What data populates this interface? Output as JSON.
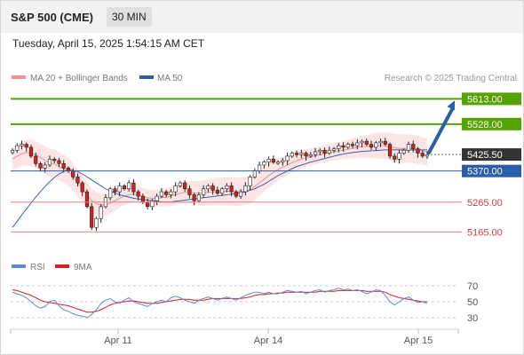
{
  "header": {
    "title": "S&P 500 (CME)",
    "timeframe": "30 MIN"
  },
  "timestamp": "Tuesday, April 15, 2025 1:54:15 AM CET",
  "legend": {
    "bb_label": "MA 20 + Bollinger Bands",
    "ma50_label": "MA 50",
    "credit": "Research © 2025 Trading Central",
    "rsi_label": "RSI",
    "rsi_ma_label": "9MA"
  },
  "colors": {
    "resistance": "#55a300",
    "support_major": "#2c5ea8",
    "support_minor": "#e88080",
    "current": "#333333",
    "bollinger_fill": "#fde0e0",
    "ma20": "#f09090",
    "ma50": "#3a62a8",
    "candle_up": "#ffffff",
    "candle_down": "#d42020",
    "rsi": "#5b8bd8",
    "rsi_ma": "#d42020",
    "arrow": "#2a5ea6"
  },
  "chart_data": {
    "type": "candlestick",
    "price_scale": [
      5100,
      5650
    ],
    "x_ticks": [
      "Apr 11",
      "Apr 14",
      "Apr 15"
    ],
    "levels": [
      {
        "value": 5613.0,
        "label": "5613.00",
        "kind": "resistance"
      },
      {
        "value": 5528.0,
        "label": "5528.00",
        "kind": "resistance"
      },
      {
        "value": 5425.5,
        "label": "5425.50",
        "kind": "current"
      },
      {
        "value": 5370.0,
        "label": "5370.00",
        "kind": "support_major"
      },
      {
        "value": 5265.0,
        "label": "5265.00",
        "kind": "support_minor"
      },
      {
        "value": 5165.0,
        "label": "5165.00",
        "kind": "support_minor"
      }
    ],
    "arrow": {
      "from": 5425.5,
      "to": 5613.0
    },
    "close": [
      5440,
      5455,
      5460,
      5450,
      5420,
      5395,
      5380,
      5390,
      5410,
      5405,
      5395,
      5380,
      5370,
      5350,
      5330,
      5300,
      5250,
      5180,
      5210,
      5250,
      5280,
      5310,
      5300,
      5320,
      5310,
      5330,
      5300,
      5285,
      5265,
      5250,
      5270,
      5285,
      5300,
      5290,
      5300,
      5320,
      5330,
      5310,
      5290,
      5270,
      5290,
      5310,
      5320,
      5305,
      5295,
      5310,
      5320,
      5300,
      5285,
      5300,
      5320,
      5350,
      5370,
      5390,
      5400,
      5410,
      5400,
      5400,
      5405,
      5420,
      5430,
      5425,
      5430,
      5420,
      5425,
      5435,
      5440,
      5430,
      5440,
      5445,
      5455,
      5450,
      5460,
      5455,
      5465,
      5470,
      5460,
      5450,
      5465,
      5470,
      5460,
      5420,
      5410,
      5430,
      5440,
      5460,
      5445,
      5430,
      5420,
      5425
    ],
    "ma20": [
      5410,
      5420,
      5428,
      5432,
      5430,
      5425,
      5415,
      5405,
      5398,
      5393,
      5385,
      5378,
      5368,
      5350,
      5330,
      5310,
      5290,
      5270,
      5260,
      5255,
      5255,
      5262,
      5270,
      5278,
      5285,
      5290,
      5292,
      5290,
      5285,
      5280,
      5278,
      5278,
      5280,
      5282,
      5285,
      5290,
      5295,
      5298,
      5298,
      5296,
      5295,
      5296,
      5298,
      5300,
      5300,
      5301,
      5302,
      5301,
      5300,
      5300,
      5303,
      5308,
      5318,
      5330,
      5342,
      5355,
      5365,
      5375,
      5383,
      5390,
      5398,
      5405,
      5410,
      5415,
      5418,
      5421,
      5425,
      5428,
      5432,
      5435,
      5438,
      5440,
      5443,
      5446,
      5449,
      5452,
      5453,
      5454,
      5455,
      5456,
      5455,
      5452,
      5448,
      5446,
      5446,
      5446,
      5444,
      5441,
      5438,
      5434
    ],
    "ma50": [
      5180,
      5200,
      5222,
      5242,
      5262,
      5282,
      5300,
      5318,
      5334,
      5348,
      5360,
      5368,
      5374,
      5372,
      5368,
      5360,
      5350,
      5340,
      5330,
      5320,
      5310,
      5302,
      5296,
      5290,
      5286,
      5282,
      5278,
      5276,
      5274,
      5272,
      5270,
      5268,
      5266,
      5266,
      5266,
      5268,
      5270,
      5272,
      5274,
      5276,
      5278,
      5280,
      5282,
      5284,
      5286,
      5288,
      5290,
      5292,
      5294,
      5296,
      5300,
      5305,
      5310,
      5318,
      5325,
      5335,
      5345,
      5355,
      5362,
      5370,
      5378,
      5385,
      5390,
      5395,
      5400,
      5404,
      5408,
      5412,
      5416,
      5420,
      5424,
      5427,
      5430,
      5432,
      5434,
      5436,
      5437,
      5438,
      5439,
      5440,
      5441,
      5441,
      5441,
      5441,
      5441,
      5441,
      5441,
      5441,
      5441,
      5441
    ],
    "rsi": [
      62,
      60,
      58,
      55,
      50,
      45,
      42,
      44,
      50,
      52,
      45,
      40,
      38,
      35,
      33,
      32,
      30,
      34,
      40,
      48,
      52,
      54,
      50,
      48,
      52,
      55,
      50,
      48,
      46,
      44,
      48,
      50,
      52,
      50,
      55,
      57,
      55,
      52,
      50,
      48,
      52,
      54,
      56,
      54,
      52,
      54,
      56,
      54,
      52,
      55,
      58,
      60,
      62,
      62,
      60,
      62,
      60,
      60,
      62,
      64,
      63,
      62,
      63,
      60,
      62,
      64,
      65,
      62,
      64,
      65,
      67,
      65,
      66,
      64,
      65,
      63,
      60,
      62,
      65,
      64,
      58,
      50,
      46,
      50,
      54,
      56,
      52,
      49,
      50,
      48
    ],
    "rsi_ma": [
      65,
      64,
      62,
      60,
      58,
      55,
      52,
      50,
      49,
      48,
      47,
      46,
      45,
      43,
      41,
      39,
      37,
      37,
      38,
      40,
      43,
      46,
      48,
      49,
      50,
      51,
      51,
      50,
      49,
      48,
      48,
      48,
      49,
      50,
      51,
      52,
      53,
      53,
      53,
      52,
      52,
      52,
      53,
      54,
      54,
      54,
      54,
      54,
      54,
      54,
      55,
      56,
      58,
      59,
      59,
      60,
      60,
      61,
      61,
      62,
      62,
      62,
      62,
      62,
      62,
      62,
      63,
      63,
      63,
      63,
      64,
      64,
      64,
      64,
      64,
      64,
      63,
      63,
      63,
      63,
      62,
      59,
      57,
      55,
      54,
      53,
      52,
      51,
      50,
      50
    ],
    "rsi_ticks": [
      70,
      50,
      30
    ],
    "rsi_scale": [
      20,
      80
    ]
  }
}
